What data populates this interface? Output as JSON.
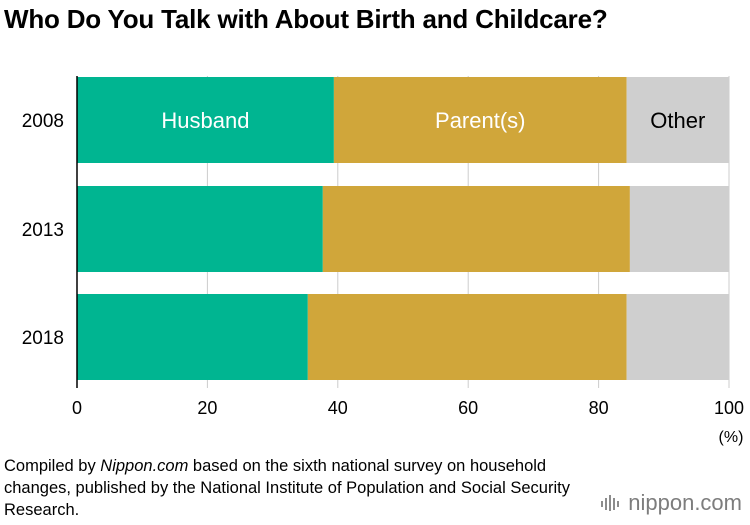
{
  "header": {
    "title": "Who Do You Talk with About Birth and Childcare?"
  },
  "chart_data": {
    "type": "bar",
    "orientation": "horizontal",
    "stacked": true,
    "title": "Who Do You Talk with About Birth and Childcare?",
    "xlabel": "",
    "ylabel": "",
    "unit_label": "(%)",
    "xlim": [
      0,
      100
    ],
    "x_ticks": [
      "0",
      "20",
      "40",
      "60",
      "80",
      "100"
    ],
    "grid": true,
    "categories": [
      "2008",
      "2013",
      "2018"
    ],
    "series": [
      {
        "name": "Husband",
        "values": [
          39.4,
          37.7,
          35.4
        ],
        "color": "#00b591"
      },
      {
        "name": "Parent(s)",
        "values": [
          44.9,
          47.1,
          48.9
        ],
        "color": "#d0a63a"
      },
      {
        "name": "Other",
        "values": [
          15.7,
          15.2,
          15.7
        ],
        "color": "#cfcfcf"
      }
    ],
    "segment_labels": {
      "row": 0,
      "colors": [
        "#ffffff",
        "#ffffff",
        "#000000"
      ]
    }
  },
  "source": {
    "prefix": "Compiled by ",
    "name": "Nippon.com",
    "suffix": " based on the sixth national survey on household changes, published by the National Institute of Population and Social Security Research."
  },
  "brand": {
    "text": "nippon.com",
    "color": "#7d7d7d"
  }
}
